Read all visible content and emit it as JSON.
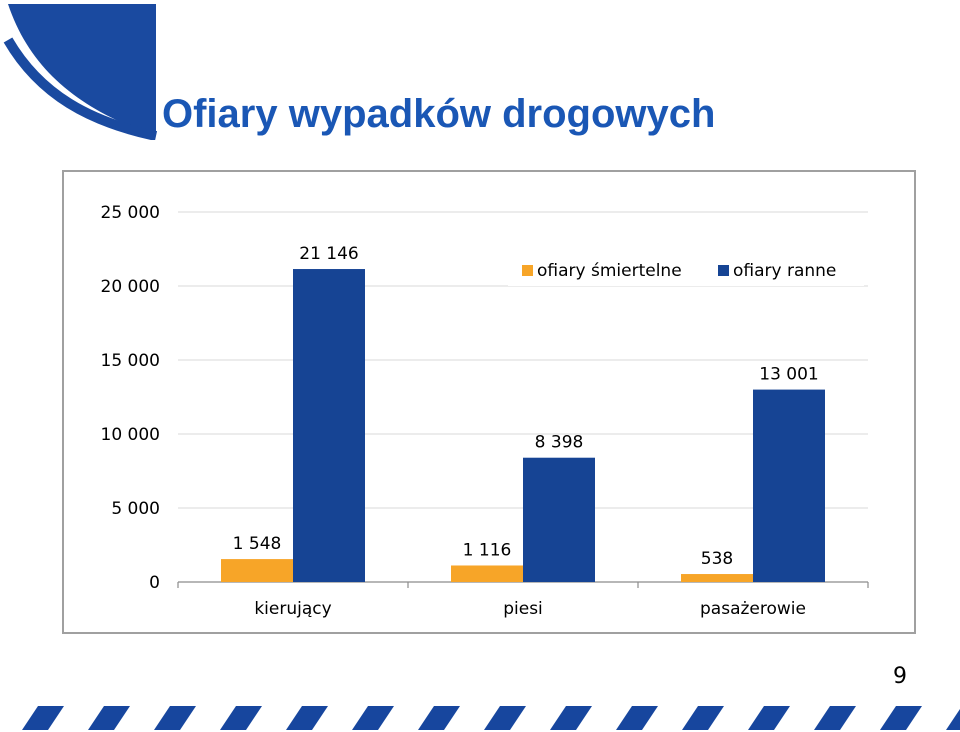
{
  "slide": {
    "title": "Ofiary wypadków drogowych",
    "page_number": "9",
    "brand_color": "#1a57b5",
    "stripe_color": "#17469e"
  },
  "chart_data": {
    "type": "bar",
    "categories": [
      "kierujący",
      "piesi",
      "pasażerowie"
    ],
    "series": [
      {
        "name": "ofiary śmiertelne",
        "color": "#f7a528",
        "values": [
          1548,
          1116,
          538
        ],
        "labels": [
          "1 548",
          "1 116",
          "538"
        ]
      },
      {
        "name": "ofiary ranne",
        "color": "#164494",
        "values": [
          21146,
          8398,
          13001
        ],
        "labels": [
          "21 146",
          "8 398",
          "13 001"
        ]
      }
    ],
    "yticks": [
      0,
      5000,
      10000,
      15000,
      20000,
      25000
    ],
    "ytick_labels": [
      "0",
      "5 000",
      "10 000",
      "15 000",
      "20 000",
      "25 000"
    ],
    "ylim": [
      0,
      25000
    ],
    "grid": true,
    "legend_position": "top-right"
  }
}
